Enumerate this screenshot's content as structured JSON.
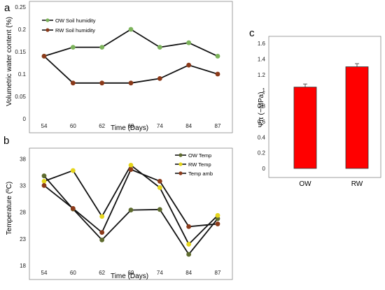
{
  "chart_data": [
    {
      "panel": "a",
      "type": "line",
      "xlabel": "Time (Days)",
      "ylabel": "Volumetric water content (%)",
      "categories": [
        "54",
        "60",
        "62",
        "69",
        "74",
        "84",
        "87"
      ],
      "yticks": [
        "0",
        "0.05",
        "0.1",
        "0.15",
        "0.2",
        "0.25"
      ],
      "ylim": [
        0,
        0.25
      ],
      "legend_position": "top-left",
      "series": [
        {
          "name": "OW Soil humidity",
          "color": "#7cb35b",
          "values": [
            0.14,
            0.16,
            0.16,
            0.2,
            0.16,
            0.17,
            0.14
          ]
        },
        {
          "name": "RW Soil humidity",
          "color": "#8b3a1a",
          "values": [
            0.14,
            0.08,
            0.08,
            0.08,
            0.09,
            0.12,
            0.1
          ]
        }
      ]
    },
    {
      "panel": "b",
      "type": "line",
      "xlabel": "Time (Days)",
      "ylabel": "Temperature (ºC)",
      "categories": [
        "54",
        "60",
        "62",
        "69",
        "74",
        "84",
        "87"
      ],
      "yticks": [
        "18",
        "23",
        "28",
        "33",
        "38"
      ],
      "ylim": [
        18,
        40
      ],
      "legend_position": "top-right",
      "series": [
        {
          "name": "OW Temp",
          "color": "#5e6b2e",
          "values": [
            34.8,
            28.6,
            22.8,
            28.4,
            28.5,
            20.1,
            26.8
          ]
        },
        {
          "name": "RW Temp",
          "color": "#e5d51b",
          "values": [
            33.8,
            35.8,
            27.2,
            36.8,
            32.6,
            22.0,
            27.4
          ]
        },
        {
          "name": "Temp amb",
          "color": "#8b3a1a",
          "values": [
            33.0,
            28.7,
            24.2,
            36.0,
            33.8,
            25.3,
            25.8
          ]
        }
      ]
    },
    {
      "panel": "c",
      "type": "bar",
      "ylabel": "Ψπ (−MPa)",
      "categories": [
        "OW",
        "RW"
      ],
      "values": [
        1.04,
        1.3
      ],
      "errors": [
        0.04,
        0.04
      ],
      "yticks": [
        "0",
        "0.2",
        "0.4",
        "0.6",
        "0.8",
        "1",
        "1.2",
        "1.4",
        "1.6"
      ],
      "ylim": [
        0,
        1.6
      ],
      "bar_color": "#ff0000"
    }
  ]
}
